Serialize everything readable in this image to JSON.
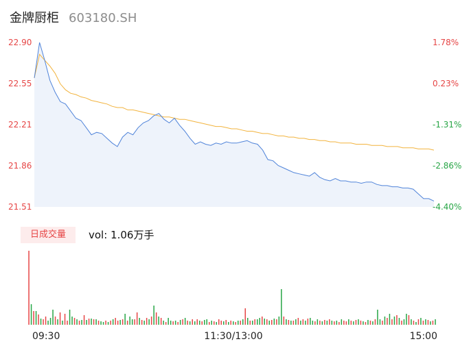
{
  "header": {
    "name": "金牌厨柜",
    "code": "603180.SH"
  },
  "chart_data": {
    "type": "line",
    "price_axis": [
      22.9,
      22.55,
      22.21,
      21.86,
      21.51
    ],
    "pct_axis": [
      "1.78%",
      "0.23%",
      "-1.31%",
      "-2.86%",
      "-4.40%"
    ],
    "time_labels": [
      "09:30",
      "11:30/13:00",
      "15:00"
    ],
    "series": [
      {
        "values": [
          22.6,
          22.9,
          22.75,
          22.58,
          22.48,
          22.4,
          22.38,
          22.32,
          22.26,
          22.24,
          22.18,
          22.12,
          22.14,
          22.13,
          22.09,
          22.05,
          22.02,
          22.1,
          22.14,
          22.12,
          22.18,
          22.22,
          22.24,
          22.28,
          22.3,
          22.25,
          22.22,
          22.26,
          22.2,
          22.15,
          22.09,
          22.04,
          22.06,
          22.04,
          22.03,
          22.05,
          22.04,
          22.06,
          22.05,
          22.05,
          22.06,
          22.07,
          22.05,
          22.04,
          21.99,
          21.91,
          21.9,
          21.86,
          21.84,
          21.82,
          21.8,
          21.79,
          21.78,
          21.77,
          21.8,
          21.76,
          21.74,
          21.73,
          21.75,
          21.73,
          21.73,
          21.72,
          21.72,
          21.71,
          21.72,
          21.72,
          21.7,
          21.69,
          21.69,
          21.68,
          21.68,
          21.67,
          21.67,
          21.66,
          21.62,
          21.58,
          21.58,
          21.56
        ]
      },
      {
        "values": [
          22.6,
          22.8,
          22.75,
          22.7,
          22.64,
          22.55,
          22.5,
          22.47,
          22.46,
          22.44,
          22.43,
          22.41,
          22.4,
          22.39,
          22.38,
          22.36,
          22.35,
          22.35,
          22.33,
          22.33,
          22.32,
          22.31,
          22.3,
          22.29,
          22.28,
          22.27,
          22.27,
          22.26,
          22.25,
          22.25,
          22.24,
          22.23,
          22.22,
          22.21,
          22.2,
          22.19,
          22.19,
          22.18,
          22.17,
          22.17,
          22.16,
          22.15,
          22.15,
          22.14,
          22.13,
          22.13,
          22.12,
          22.11,
          22.11,
          22.1,
          22.1,
          22.09,
          22.09,
          22.08,
          22.08,
          22.07,
          22.07,
          22.06,
          22.06,
          22.05,
          22.05,
          22.05,
          22.04,
          22.04,
          22.04,
          22.03,
          22.03,
          22.03,
          22.02,
          22.02,
          22.02,
          22.01,
          22.01,
          22.01,
          22.0,
          22.0,
          22.0,
          21.99
        ]
      }
    ],
    "ylim": [
      21.51,
      22.9
    ],
    "colors": {
      "price": "#4f83d9",
      "avg": "#f2b33d",
      "up": "#e64545",
      "down": "#27a545",
      "area": "#eef3fb"
    }
  },
  "volume": {
    "tag": "日成交量",
    "label": "vol: 1.06万手",
    "bars": [
      108,
      30,
      20,
      20,
      15,
      9,
      8,
      12,
      6,
      10,
      22,
      12,
      8,
      18,
      6,
      16,
      6,
      22,
      12,
      10,
      8,
      6,
      7,
      14,
      7,
      9,
      9,
      8,
      8,
      6,
      5,
      4,
      6,
      4,
      6,
      8,
      10,
      6,
      7,
      8,
      16,
      6,
      12,
      8,
      8,
      18,
      10,
      7,
      6,
      10,
      8,
      12,
      28,
      18,
      12,
      10,
      6,
      4,
      10,
      6,
      5,
      6,
      4,
      7,
      8,
      10,
      6,
      5,
      8,
      5,
      8,
      6,
      5,
      7,
      8,
      4,
      6,
      5,
      4,
      8,
      6,
      5,
      7,
      4,
      6,
      5,
      4,
      6,
      6,
      8,
      24,
      10,
      6,
      6,
      8,
      8,
      10,
      12,
      9,
      8,
      6,
      7,
      9,
      8,
      12,
      52,
      12,
      8,
      7,
      6,
      6,
      8,
      10,
      6,
      8,
      6,
      9,
      10,
      6,
      5,
      8,
      6,
      5,
      7,
      6,
      8,
      6,
      5,
      6,
      4,
      8,
      6,
      5,
      8,
      6,
      5,
      7,
      8,
      6,
      5,
      4,
      7,
      6,
      5,
      8,
      22,
      8,
      6,
      12,
      10,
      16,
      8,
      12,
      14,
      10,
      6,
      8,
      16,
      14,
      8,
      6,
      4,
      8,
      10,
      6,
      8,
      7,
      5,
      6,
      8
    ],
    "dirs": "rgrgrgrrgggrgrgrrggrgrgrgrgrgrggrgrgrrgrgrggrrgrgrgrgrgrgrggrgrgrgrgrgrgrggrgrgrrgrgrgrgrgrgrgrggrgrgrgrggrgrgrgrgrgrggrgrgrgrgrgrgrrgrgrgrgrgrgrggrgrgrgrgrggrgrgrgrgrgrgrggrgrgr"
  }
}
